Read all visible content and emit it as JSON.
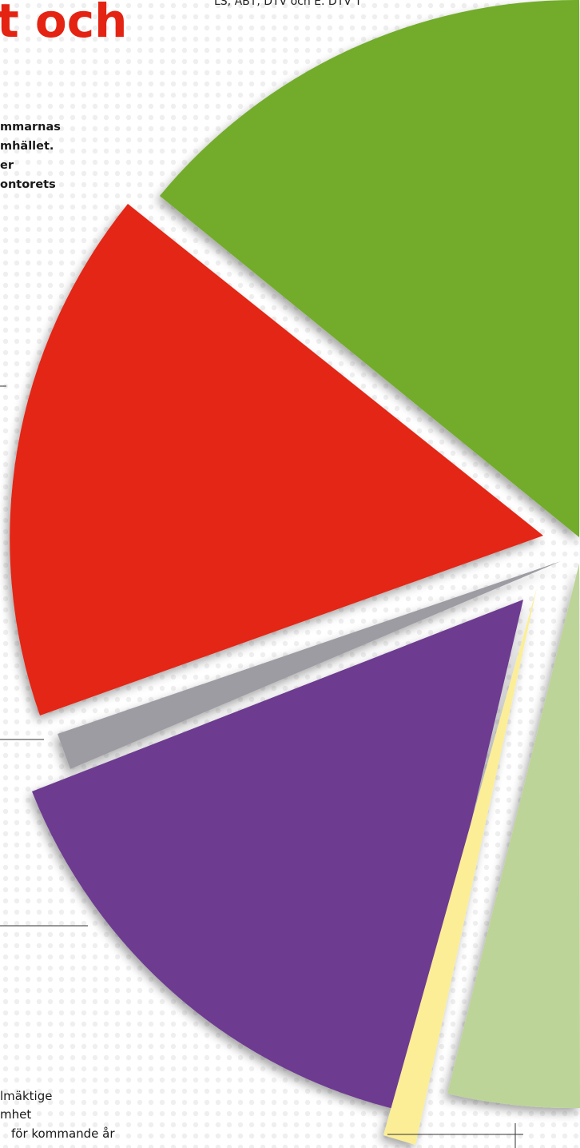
{
  "header": {
    "title": "t och",
    "source": "LS, ABT, DTV och E. DTV T"
  },
  "intro": {
    "lines": [
      "mmarnas",
      "mhället.",
      "er",
      "ontorets"
    ]
  },
  "footer": {
    "lines": [
      "lmäktige",
      "mhet",
      "för kommande år"
    ]
  }
}
